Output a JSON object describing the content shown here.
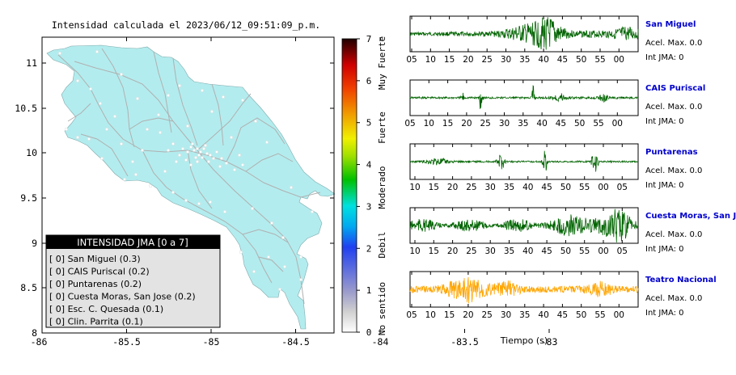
{
  "map": {
    "title": "Intensidad calculada el 2023/06/12_09:51:09_p.m.",
    "lon_ticks": [
      "-86",
      "-85.5",
      "-85",
      "-84.5",
      "-84",
      "-83.5",
      "-83"
    ],
    "lat_ticks": [
      "11",
      "10.5",
      "10",
      "9.5",
      "9",
      "8.5",
      "8"
    ],
    "xlim": [
      -86,
      -82.5
    ],
    "ylim": [
      8,
      11.3
    ],
    "land_color": "#b3ecee",
    "legend": {
      "title": "INTENSIDAD JMA [0 a 7]",
      "items": [
        "[ 0]  San Miguel (0.3)",
        "[ 0]  CAIS Puriscal (0.2)",
        "[ 0]  Puntarenas (0.2)",
        "[ 0]  Cuesta Moras, San Jose (0.2)",
        "[ 0]  Esc. C. Quesada (0.1)",
        "[ 0]  Clin. Parrita (0.1)"
      ]
    }
  },
  "colorbar": {
    "ticks": [
      "0",
      "1",
      "2",
      "3",
      "4",
      "5",
      "6",
      "7"
    ],
    "labels": [
      "No sentido",
      "Debil",
      "Moderado",
      "Fuerte",
      "Muy Fuerte"
    ],
    "range": [
      0,
      7
    ]
  },
  "chart_data": [
    {
      "type": "line",
      "series": [
        {
          "name": "San Miguel",
          "color": "#006400",
          "acel_label": "Acel. Max. 0.0",
          "int_label": "Int JMA: 0",
          "x_ticks": [
            "05",
            "10",
            "15",
            "20",
            "25",
            "30",
            "35",
            "40",
            "45",
            "50",
            "55",
            "00"
          ],
          "x_start": 2,
          "wave": "ramp35"
        },
        {
          "name": "CAIS Puriscal",
          "color": "#006400",
          "acel_label": "Acel. Max. 0.0",
          "int_label": "Int JMA: 0",
          "x_ticks": [
            "05",
            "10",
            "15",
            "20",
            "25",
            "30",
            "35",
            "40",
            "45",
            "50",
            "55",
            "00"
          ],
          "x_start": 0,
          "wave": "spikes"
        },
        {
          "name": "Puntarenas",
          "color": "#006400",
          "acel_label": "Acel. Max. 0.0",
          "int_label": "Int JMA: 0",
          "x_ticks": [
            "10",
            "15",
            "20",
            "25",
            "30",
            "35",
            "40",
            "45",
            "50",
            "55",
            "00",
            "05"
          ],
          "x_start": 6,
          "wave": "bursts"
        },
        {
          "name": "Cuesta Moras, San Jose",
          "color": "#006400",
          "acel_label": "Acel. Max. 0.0",
          "int_label": "Int JMA: 0",
          "x_ticks": [
            "10",
            "15",
            "20",
            "25",
            "30",
            "35",
            "40",
            "45",
            "50",
            "55",
            "00",
            "05"
          ],
          "x_start": 6,
          "wave": "noisy"
        },
        {
          "name": "Teatro Nacional",
          "color": "#ffa500",
          "acel_label": "Acel. Max. 0.0",
          "int_label": "Int JMA: 0",
          "x_ticks": [
            "05",
            "10",
            "15",
            "20",
            "25",
            "30",
            "35",
            "40",
            "45",
            "50",
            "55",
            "00"
          ],
          "x_start": 2,
          "wave": "early"
        }
      ],
      "xlabel": "Tiempo (s)"
    }
  ]
}
